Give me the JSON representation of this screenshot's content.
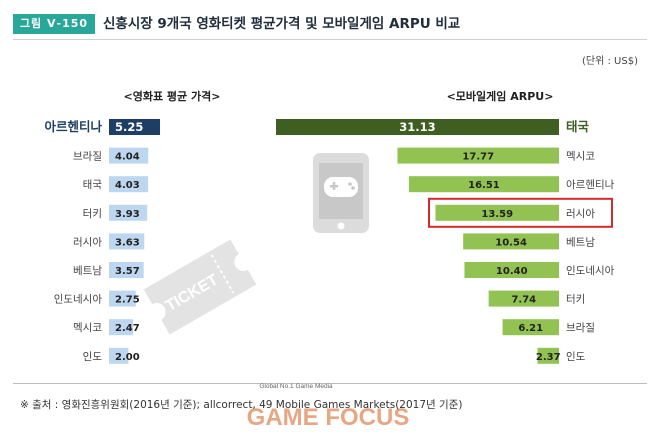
{
  "figure": {
    "tag": "그림 Ⅴ-150",
    "title": "신흥시장 9개국 영화티켓 평균가격 및 모바일게임 ARPU 비교",
    "unit": "(단위 : US$)",
    "source": "※ 출처 : 영화진흥위원회(2016년 기준); allcorrect, 49 Mobile Games Markets(2017년 기준)",
    "watermark": {
      "top": "Global No.1 Game Media",
      "brand": "GAME FOCUS"
    },
    "ticket_icon": "TICKET",
    "colors": {
      "highlight_dark_blue": "#1d3f66",
      "bar_light_blue": "#bcd7ef",
      "highlight_dark_green": "#3f5f22",
      "bar_light_green": "#92c352",
      "callout_red": "#d42a2a",
      "title_tag": "#2aa79b"
    }
  },
  "chart_data": [
    {
      "type": "bar",
      "orientation": "horizontal",
      "title": "<영화표 평균 가격>",
      "categories": [
        "아르헨티나",
        "브라질",
        "태국",
        "터키",
        "러시아",
        "베트남",
        "인도네시아",
        "멕시코",
        "인도"
      ],
      "values": [
        5.25,
        4.04,
        4.03,
        3.93,
        3.63,
        3.57,
        2.75,
        2.47,
        2.0
      ],
      "labels": [
        "5.25",
        "4.04",
        "4.03",
        "3.93",
        "3.63",
        "3.57",
        "2.75",
        "2.47",
        "2.00"
      ],
      "highlight_index": 0,
      "xlim": [
        0,
        5.25
      ]
    },
    {
      "type": "bar",
      "orientation": "horizontal",
      "direction": "right-to-left",
      "title": "<모바일게임 ARPU>",
      "categories": [
        "태국",
        "멕시코",
        "아르헨티나",
        "러시아",
        "베트남",
        "인도네시아",
        "터키",
        "브라질",
        "인도"
      ],
      "values": [
        31.13,
        17.77,
        16.51,
        13.59,
        10.54,
        10.4,
        7.74,
        6.21,
        2.37
      ],
      "labels": [
        "31.13",
        "17.77",
        "16.51",
        "13.59",
        "10.54",
        "10.40",
        "7.74",
        "6.21",
        "2.37"
      ],
      "highlight_index": 0,
      "callout_index": 3,
      "xlim": [
        0,
        31.13
      ]
    }
  ]
}
